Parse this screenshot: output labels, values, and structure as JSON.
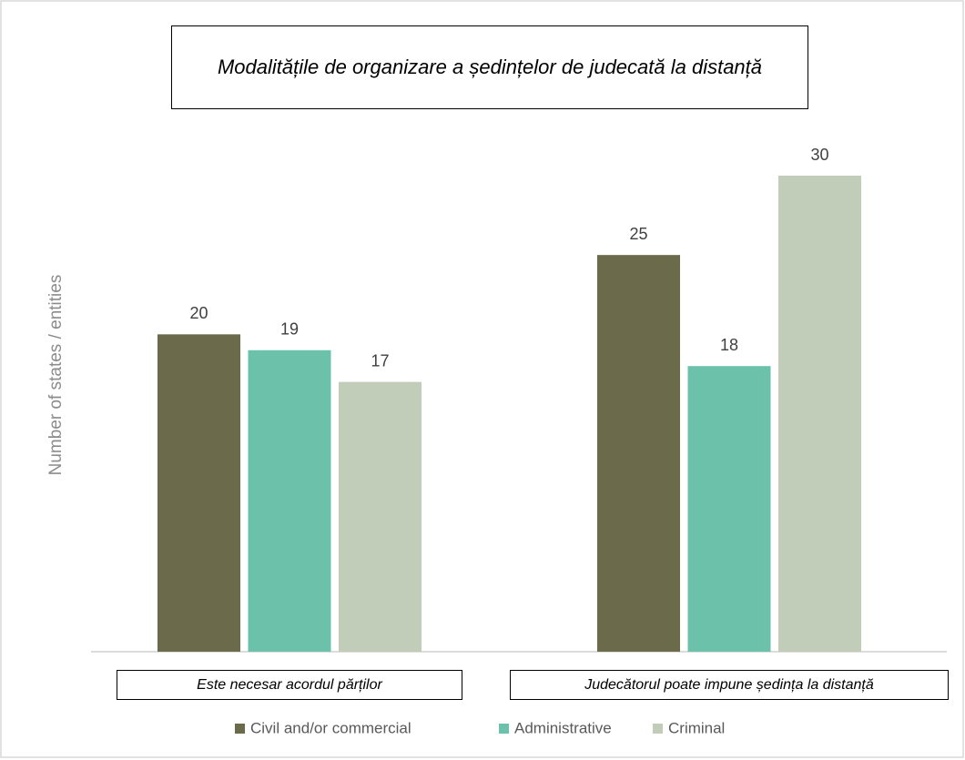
{
  "chart_data": {
    "type": "bar",
    "title": "Modalitățile de organizare a ședințelor de judecată la distanță",
    "y_label": "Number of states / entities",
    "categories": [
      "Este necesar acordul părților",
      "Judecătorul poate impune ședința la distanță"
    ],
    "series": [
      {
        "name": "Civil and/or commercial",
        "color": "#6b6a4a",
        "values": [
          20,
          25
        ]
      },
      {
        "name": "Administrative",
        "color": "#6cc1aa",
        "values": [
          19,
          18
        ]
      },
      {
        "name": "Criminal",
        "color": "#c2cdb9",
        "values": [
          17,
          30
        ]
      }
    ],
    "ylim": [
      0,
      30
    ],
    "legend": "bottom"
  }
}
